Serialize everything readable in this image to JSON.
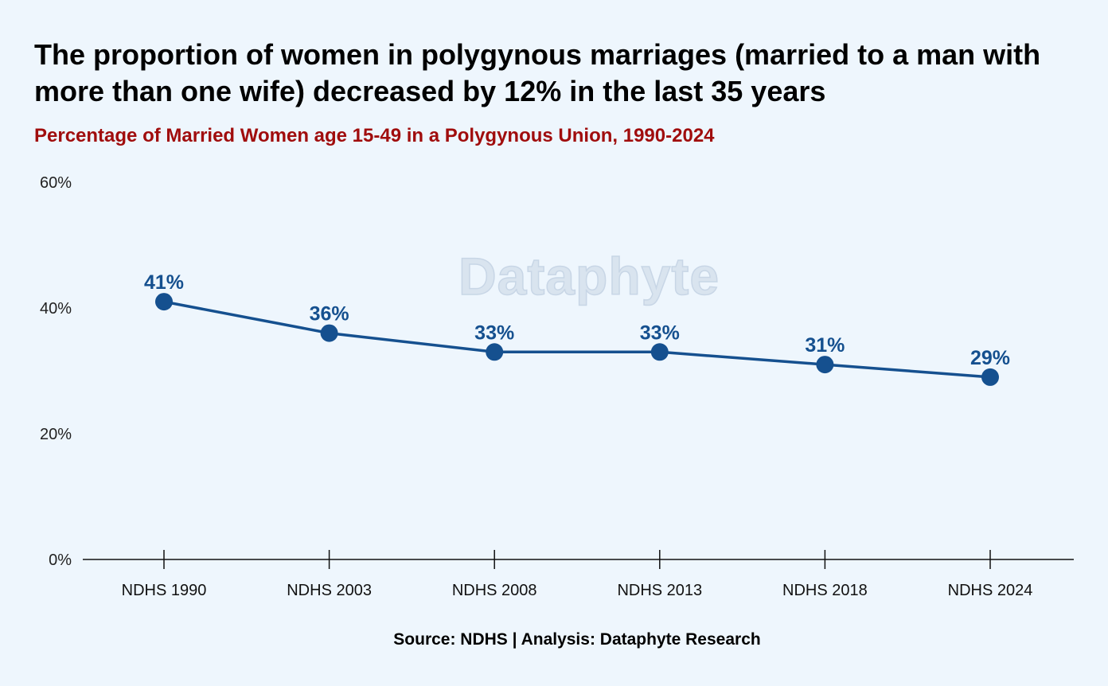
{
  "chart_data": {
    "type": "line",
    "title": "The proportion of women in polygynous marriages (married to a man with more than one wife) decreased by 12% in the last 35 years",
    "subtitle": "Percentage of Married Women age 15-49 in a Polygynous Union, 1990-2024",
    "categories": [
      "NDHS 1990",
      "NDHS 2003",
      "NDHS 2008",
      "NDHS 2013",
      "NDHS 2018",
      "NDHS 2024"
    ],
    "values": [
      41,
      36,
      33,
      33,
      31,
      29
    ],
    "data_labels": [
      "41%",
      "36%",
      "33%",
      "33%",
      "31%",
      "29%"
    ],
    "ylim": [
      0,
      60
    ],
    "yticks": [
      0,
      20,
      40,
      60
    ],
    "ytick_labels": [
      "0%",
      "20%",
      "40%",
      "60%"
    ],
    "xlabel": "",
    "ylabel": "",
    "grid": false,
    "source": "Source: NDHS | Analysis: Dataphyte Research",
    "watermark": "Dataphyte",
    "colors": {
      "line": "#15508f",
      "title": "#000000",
      "subtitle": "#a00d0d",
      "background": "#eef6fd"
    }
  }
}
